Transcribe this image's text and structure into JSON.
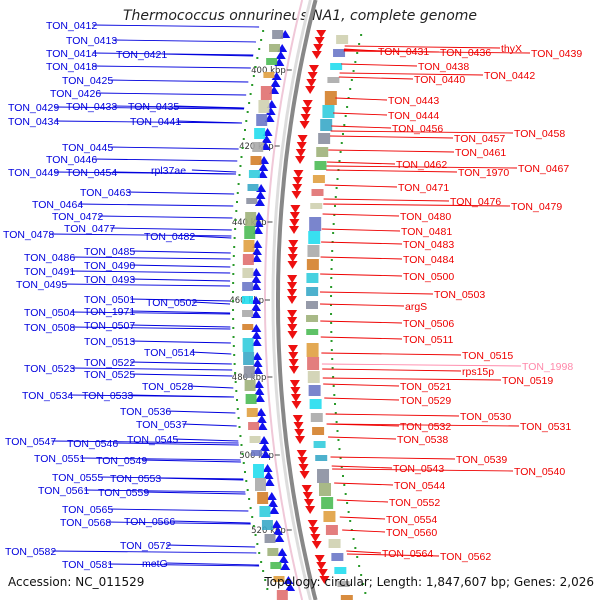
{
  "title": "Thermococcus onnurineus NA1, complete genome",
  "footer": {
    "accession": "Accession: NC_011529",
    "topology": "Topology: circular; Length: 1,847,607 bp; Genes: 2,026"
  },
  "colors": {
    "forward_strand": "#0000dd",
    "reverse_strand": "#ee0000",
    "highlight_label": "#ff88aa",
    "backbone": "#888888"
  },
  "ticks": [
    "400 kbp",
    "420 kbp",
    "440 kbp",
    "460 kbp",
    "480 kbp",
    "500 kbp",
    "520 kbp"
  ],
  "left_labels": [
    "TON_0412",
    "TON_0413",
    "TON_0414",
    "TON_0421",
    "TON_0418",
    "TON_0425",
    "TON_0426",
    "TON_0429",
    "TON_0433",
    "TON_0435",
    "TON_0434",
    "TON_0441",
    "TON_0445",
    "TON_0446",
    "TON_0449",
    "TON_0454",
    "rpl37ae",
    "TON_0463",
    "TON_0464",
    "TON_0472",
    "TON_0477",
    "TON_0478",
    "TON_0482",
    "TON_0485",
    "TON_0486",
    "TON_0490",
    "TON_0491",
    "TON_0493",
    "TON_0495",
    "TON_0501",
    "TON_0502",
    "TON_0504",
    "TON_1971",
    "TON_0507",
    "TON_0508",
    "TON_0513",
    "TON_0514",
    "TON_0522",
    "TON_0523",
    "TON_0525",
    "TON_0528",
    "TON_0534",
    "TON_0533",
    "TON_0536",
    "TON_0537",
    "TON_0545",
    "TON_0547",
    "TON_0546",
    "TON_0551",
    "TON_0549",
    "TON_0555",
    "TON_0553",
    "TON_0561",
    "TON_0559",
    "TON_0565",
    "TON_0568",
    "TON_0566",
    "TON_0572",
    "TON_0582",
    "TON_0581",
    "metG"
  ],
  "right_labels": [
    "TON_0431",
    "TON_0436",
    "thyX",
    "TON_0439",
    "TON_0438",
    "TON_0440",
    "TON_0442",
    "TON_0443",
    "TON_0444",
    "TON_0456",
    "TON_0457",
    "TON_0458",
    "TON_0461",
    "TON_0462",
    "TON_1970",
    "TON_0467",
    "TON_0471",
    "TON_0476",
    "TON_0479",
    "TON_0480",
    "TON_0481",
    "TON_0483",
    "TON_0484",
    "TON_0500",
    "TON_0503",
    "argS",
    "TON_0506",
    "TON_0511",
    "TON_0515",
    "TON_1998",
    "rps15p",
    "TON_0519",
    "TON_0521",
    "TON_0529",
    "TON_0530",
    "TON_0531",
    "TON_0532",
    "TON_0538",
    "TON_0539",
    "TON_0540",
    "TON_0543",
    "TON_0544",
    "TON_0552",
    "TON_0554",
    "TON_0560",
    "TON_0564",
    "TON_0562"
  ]
}
